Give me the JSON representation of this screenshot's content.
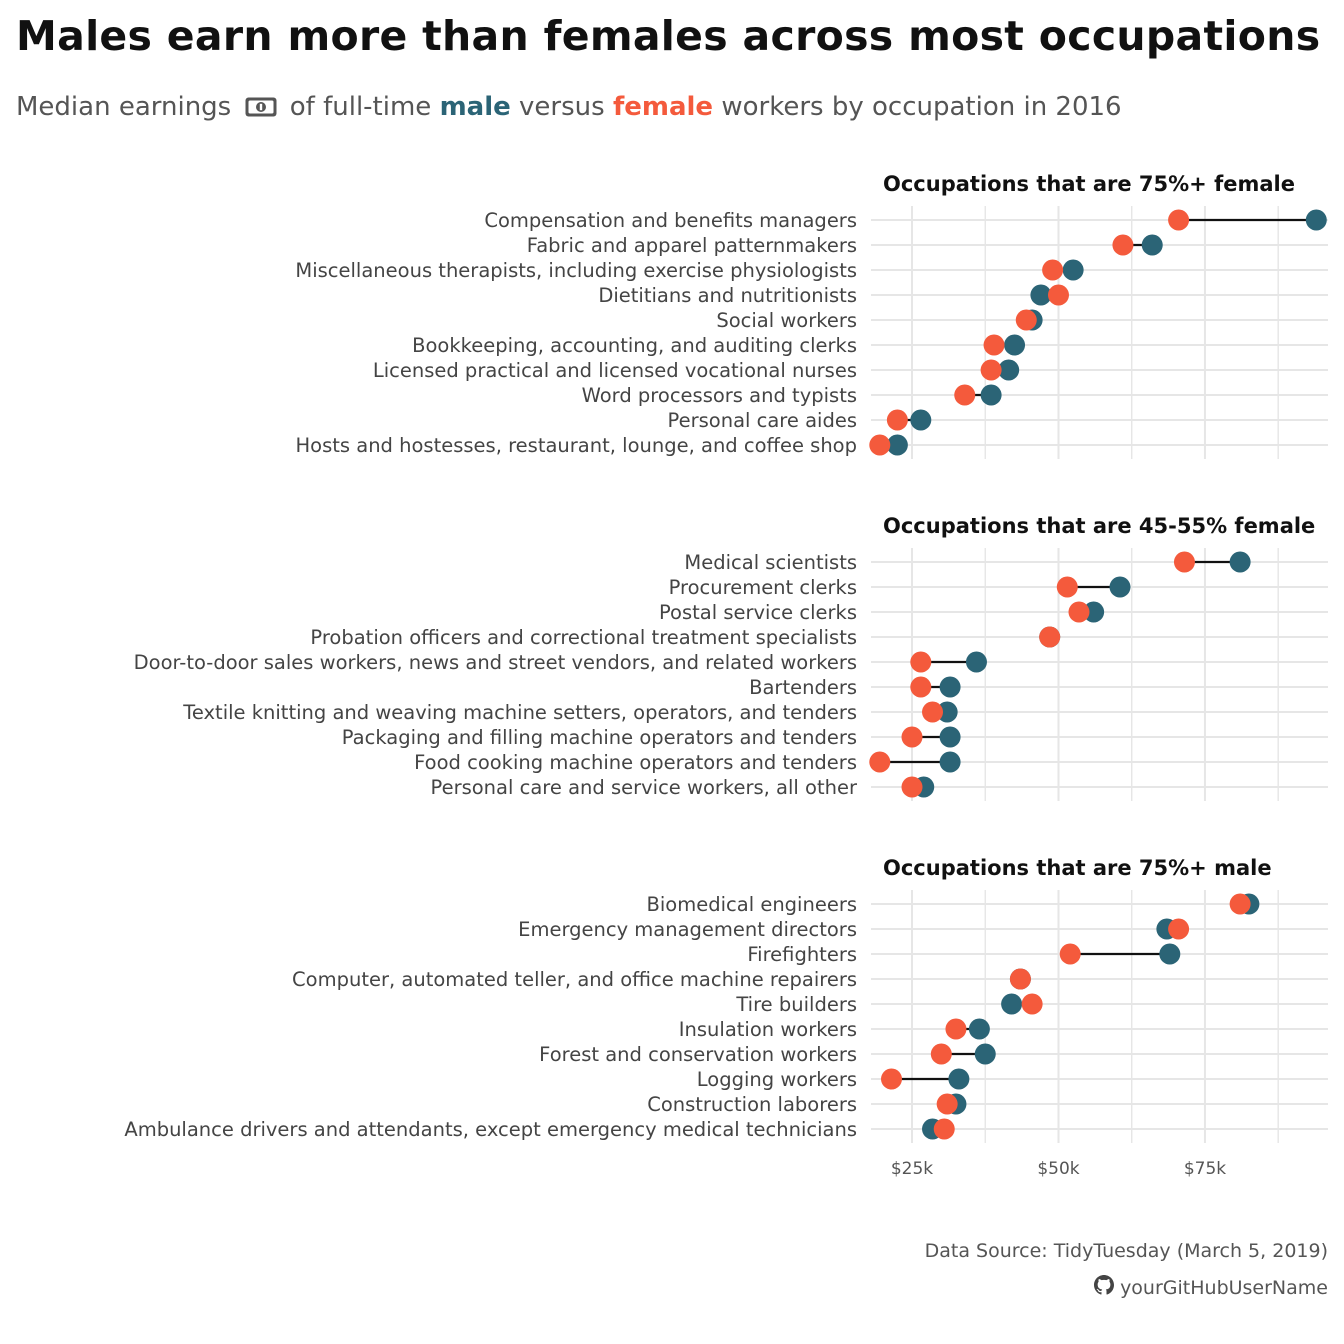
{
  "title": "Males earn more than females across most occupations",
  "subtitle": {
    "prefix": "Median earnings",
    "icon": "money-icon",
    "middle1": "of full-time",
    "male_word": "male",
    "middle2": "versus",
    "female_word": "female",
    "suffix": "workers by occupation in 2016"
  },
  "colors": {
    "male": "#2b6476",
    "female": "#f45a3c",
    "grid": "#e6e6e6",
    "segment": "#111111"
  },
  "caption": {
    "source": "Data Source: TidyTuesday (March 5, 2019)",
    "github_icon": "github-icon",
    "handle": "yourGitHubUserName"
  },
  "chart_data": {
    "type": "dumbbell",
    "x_ticks": [
      {
        "value": 25000,
        "label": "$25k"
      },
      {
        "value": 50000,
        "label": "$50k"
      },
      {
        "value": 75000,
        "label": "$75k"
      }
    ],
    "xlim": [
      18000,
      96000
    ],
    "grid": true,
    "facets": [
      {
        "title": "Occupations that are 75%+ female",
        "rows": [
          {
            "label": "Compensation and benefits managers",
            "male": 94000,
            "female": 70500
          },
          {
            "label": "Fabric and apparel patternmakers",
            "male": 66000,
            "female": 61000
          },
          {
            "label": "Miscellaneous therapists, including exercise physiologists",
            "male": 52500,
            "female": 49000
          },
          {
            "label": "Dietitians and nutritionists",
            "male": 47000,
            "female": 50000
          },
          {
            "label": "Social workers",
            "male": 45500,
            "female": 44500
          },
          {
            "label": "Bookkeeping, accounting, and auditing clerks",
            "male": 42500,
            "female": 39000
          },
          {
            "label": "Licensed practical and licensed vocational nurses",
            "male": 41500,
            "female": 38500
          },
          {
            "label": "Word processors and typists",
            "male": 38500,
            "female": 34000
          },
          {
            "label": "Personal care aides",
            "male": 26500,
            "female": 22500
          },
          {
            "label": "Hosts and hostesses, restaurant, lounge, and coffee shop",
            "male": 22500,
            "female": 19500
          }
        ]
      },
      {
        "title": "Occupations that are 45-55% female",
        "rows": [
          {
            "label": "Medical scientists",
            "male": 81000,
            "female": 71500
          },
          {
            "label": "Procurement clerks",
            "male": 60500,
            "female": 51500
          },
          {
            "label": "Postal service clerks",
            "male": 56000,
            "female": 53500
          },
          {
            "label": "Probation officers and correctional treatment specialists",
            "male": 48500,
            "female": 48500
          },
          {
            "label": "Door-to-door sales workers, news and street vendors, and related workers",
            "male": 36000,
            "female": 26500
          },
          {
            "label": "Bartenders",
            "male": 31500,
            "female": 26500
          },
          {
            "label": "Textile knitting and weaving machine setters, operators, and tenders",
            "male": 31000,
            "female": 28500
          },
          {
            "label": "Packaging and filling machine operators and tenders",
            "male": 31500,
            "female": 25000
          },
          {
            "label": "Food cooking machine operators and tenders",
            "male": 31500,
            "female": 19500
          },
          {
            "label": "Personal care and service workers, all other",
            "male": 27000,
            "female": 25000
          }
        ]
      },
      {
        "title": "Occupations that are 75%+ male",
        "rows": [
          {
            "label": "Biomedical engineers",
            "male": 82500,
            "female": 81000
          },
          {
            "label": "Emergency management directors",
            "male": 68500,
            "female": 70500
          },
          {
            "label": "Firefighters",
            "male": 69000,
            "female": 52000
          },
          {
            "label": "Computer, automated teller, and office machine repairers",
            "male": 43500,
            "female": 43500
          },
          {
            "label": "Tire builders",
            "male": 42000,
            "female": 45500
          },
          {
            "label": "Insulation workers",
            "male": 36500,
            "female": 32500
          },
          {
            "label": "Forest and conservation workers",
            "male": 37500,
            "female": 30000
          },
          {
            "label": "Logging workers",
            "male": 33000,
            "female": 21500
          },
          {
            "label": "Construction laborers",
            "male": 32500,
            "female": 31000
          },
          {
            "label": "Ambulance drivers and attendants, except emergency medical technicians",
            "male": 28500,
            "female": 30500
          }
        ]
      }
    ]
  }
}
